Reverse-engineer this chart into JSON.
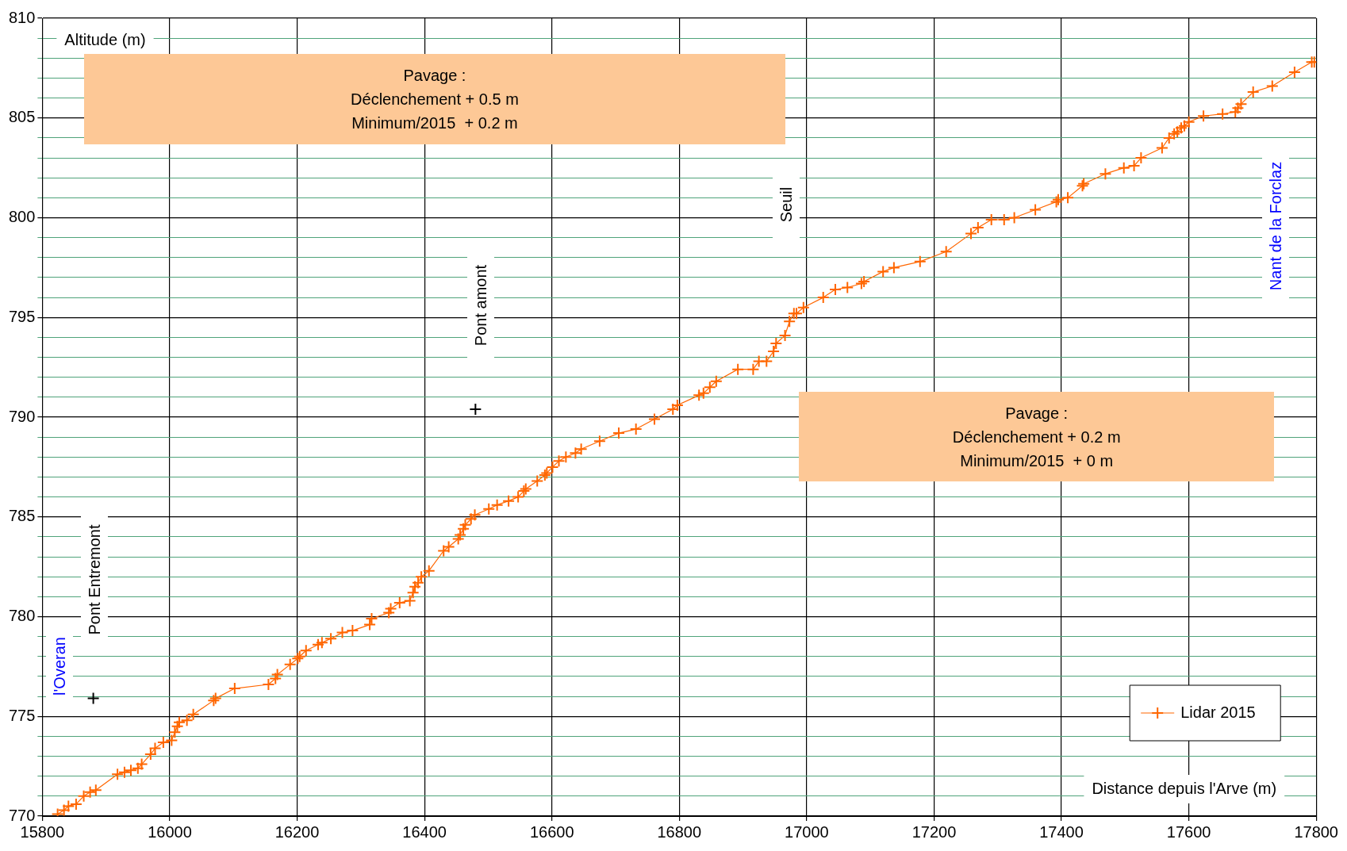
{
  "chart_data": {
    "type": "line",
    "xlabel": "Distance depuis l'Arve (m)",
    "ylabel": "Altitude (m)",
    "xlim": [
      15800,
      17800
    ],
    "xticks": [
      15800,
      16000,
      16200,
      16400,
      16600,
      16800,
      17000,
      17200,
      17400,
      17600,
      17800
    ],
    "ylim": [
      770,
      810
    ],
    "yticks": [
      770,
      {
        "value": 771,
        "label": null
      },
      {
        "value": 772,
        "label": null
      },
      {
        "value": 773,
        "label": null
      },
      {
        "value": 774,
        "label": null
      },
      775,
      {
        "value": 776,
        "label": null
      },
      {
        "value": 777,
        "label": null
      },
      {
        "value": 778,
        "label": null
      },
      {
        "value": 779,
        "label": null
      },
      780,
      {
        "value": 781,
        "label": null
      },
      {
        "value": 782,
        "label": null
      },
      {
        "value": 783,
        "label": null
      },
      {
        "value": 784,
        "label": null
      },
      785,
      {
        "value": 786,
        "label": null
      },
      {
        "value": 787,
        "label": null
      },
      {
        "value": 788,
        "label": null
      },
      {
        "value": 789,
        "label": null
      },
      790,
      {
        "value": 791,
        "label": null
      },
      {
        "value": 792,
        "label": null
      },
      {
        "value": 793,
        "label": null
      },
      {
        "value": 794,
        "label": null
      },
      795,
      {
        "value": 796,
        "label": null
      },
      {
        "value": 797,
        "label": null
      },
      {
        "value": 798,
        "label": null
      },
      {
        "value": 799,
        "label": null
      },
      800,
      {
        "value": 801,
        "label": null
      },
      {
        "value": 802,
        "label": null
      },
      {
        "value": 803,
        "label": null
      },
      {
        "value": 804,
        "label": null
      },
      805,
      {
        "value": 806,
        "label": null
      },
      {
        "value": 807,
        "label": null
      },
      {
        "value": 808,
        "label": null
      },
      {
        "value": 809,
        "label": null
      },
      810
    ],
    "grid": true,
    "legend": "bottom right",
    "marker": "cross",
    "line_style": "solid",
    "series": [
      {
        "name": "Lidar 2015",
        "color": "#ff6600",
        "x": [
          15824,
          15834,
          15841,
          15853,
          15865,
          15875,
          15884,
          15918,
          15929,
          15939,
          15950,
          15956,
          15970,
          15977,
          15990,
          16003,
          16008,
          16012,
          16015,
          16027,
          16037,
          16069,
          16072,
          16102,
          16155,
          16166,
          16169,
          16189,
          16201,
          16204,
          16214,
          16233,
          16239,
          16253,
          16271,
          16287,
          16314,
          16317,
          16344,
          16347,
          16361,
          16377,
          16382,
          16385,
          16390,
          16395,
          16407,
          16430,
          16438,
          16453,
          16456,
          16461,
          16464,
          16473,
          16479,
          16501,
          16514,
          16532,
          16547,
          16556,
          16559,
          16577,
          16589,
          16592,
          16601,
          16611,
          16622,
          16637,
          16646,
          16675,
          16705,
          16732,
          16761,
          16790,
          16797,
          16831,
          16838,
          16848,
          16858,
          16892,
          16916,
          16925,
          16937,
          16948,
          16952,
          16966,
          16973,
          16980,
          16984,
          16995,
          17026,
          17045,
          17064,
          17086,
          17090,
          17120,
          17137,
          17178,
          17219,
          17258,
          17269,
          17290,
          17310,
          17326,
          17359,
          17392,
          17395,
          17410,
          17433,
          17435,
          17469,
          17498,
          17514,
          17525,
          17558,
          17569,
          17577,
          17582,
          17588,
          17593,
          17600,
          17623,
          17653,
          17673,
          17677,
          17682,
          17701,
          17731,
          17766,
          17793,
          17797
        ],
        "values": [
          770.1,
          770.3,
          770.5,
          770.6,
          771.0,
          771.2,
          771.3,
          772.1,
          772.2,
          772.3,
          772.4,
          772.6,
          773.1,
          773.4,
          773.7,
          773.8,
          774.2,
          774.5,
          774.7,
          774.8,
          775.1,
          775.8,
          775.9,
          776.4,
          776.6,
          776.9,
          777.1,
          777.6,
          777.9,
          778.0,
          778.3,
          778.6,
          778.7,
          778.9,
          779.2,
          779.3,
          779.6,
          779.9,
          780.2,
          780.4,
          780.7,
          780.8,
          781.2,
          781.5,
          781.7,
          782.0,
          782.3,
          783.3,
          783.5,
          783.9,
          784.1,
          784.4,
          784.6,
          784.9,
          785.1,
          785.4,
          785.6,
          785.8,
          786.0,
          786.3,
          786.4,
          786.8,
          787.1,
          787.2,
          787.5,
          787.8,
          788.0,
          788.2,
          788.4,
          788.8,
          789.2,
          789.4,
          789.9,
          790.4,
          790.6,
          791.1,
          791.2,
          791.5,
          791.8,
          792.4,
          792.4,
          792.8,
          792.8,
          793.3,
          793.7,
          794.1,
          794.8,
          795.2,
          795.2,
          795.5,
          796.0,
          796.4,
          796.5,
          796.7,
          796.8,
          797.3,
          797.5,
          797.8,
          798.3,
          799.2,
          799.5,
          799.9,
          799.9,
          800.0,
          800.4,
          800.8,
          800.9,
          801.0,
          801.6,
          801.7,
          802.2,
          802.5,
          802.6,
          803.0,
          803.5,
          804.0,
          804.2,
          804.3,
          804.5,
          804.6,
          804.8,
          805.1,
          805.2,
          805.3,
          805.5,
          805.7,
          806.3,
          806.6,
          807.3,
          807.8,
          807.8
        ]
      },
      {
        "type": "scatter",
        "color": "#000000",
        "x": [
          15880,
          16480
        ],
        "values": [
          775.9,
          790.4
        ]
      }
    ],
    "annotations": [
      "Pavage :\nDéclenchement + 0.5 m\nMinimum/2015  + 0.2 m",
      "Pavage :\nDéclenchement + 0.2 m\nMinimum/2015  + 0 m",
      "Pont amont",
      "Pont Entremont",
      "l'Overan",
      "Seuil",
      "Nant de la Forclaz"
    ]
  }
}
